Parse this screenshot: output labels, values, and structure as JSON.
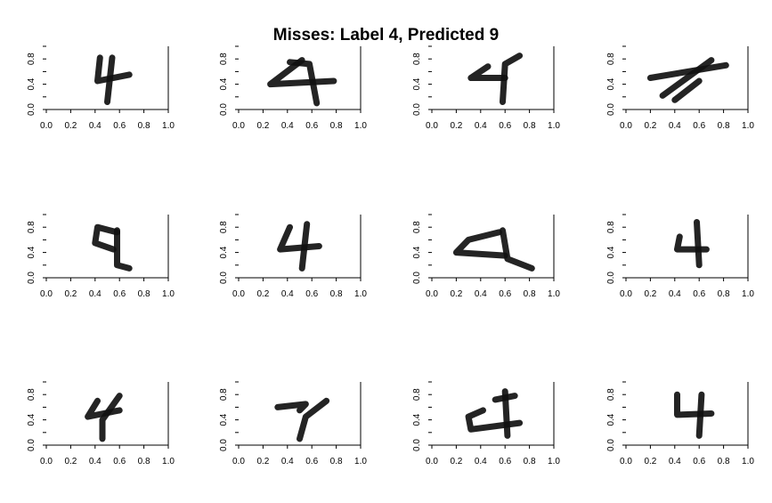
{
  "title": "Misses: Label 4, Predicted 9",
  "chart_data": [
    {
      "type": "scatter",
      "xlim": [
        0,
        1
      ],
      "ylim": [
        0,
        1
      ],
      "xticks": [
        "0.0",
        "0.2",
        "0.4",
        "0.6",
        "0.8",
        "1.0"
      ],
      "yticks": [
        "0.0",
        "0.4",
        "0.8"
      ],
      "strokes": [
        [
          [
            0.44,
            0.82
          ],
          [
            0.42,
            0.45
          ],
          [
            0.68,
            0.55
          ]
        ],
        [
          [
            0.54,
            0.82
          ],
          [
            0.5,
            0.12
          ]
        ]
      ]
    },
    {
      "type": "scatter",
      "xlim": [
        0,
        1
      ],
      "ylim": [
        0,
        1
      ],
      "xticks": [
        "0.0",
        "0.2",
        "0.4",
        "0.6",
        "0.8",
        "1.0"
      ],
      "yticks": [
        "0.0",
        "0.4",
        "0.8"
      ],
      "strokes": [
        [
          [
            0.52,
            0.78
          ],
          [
            0.26,
            0.4
          ],
          [
            0.78,
            0.45
          ]
        ],
        [
          [
            0.42,
            0.75
          ],
          [
            0.58,
            0.72
          ],
          [
            0.64,
            0.1
          ]
        ]
      ]
    },
    {
      "type": "scatter",
      "xlim": [
        0,
        1
      ],
      "ylim": [
        0,
        1
      ],
      "xticks": [
        "0.0",
        "0.2",
        "0.4",
        "0.6",
        "0.8",
        "1.0"
      ],
      "yticks": [
        "0.0",
        "0.4",
        "0.8"
      ],
      "strokes": [
        [
          [
            0.46,
            0.68
          ],
          [
            0.32,
            0.5
          ],
          [
            0.6,
            0.5
          ]
        ],
        [
          [
            0.72,
            0.85
          ],
          [
            0.6,
            0.72
          ],
          [
            0.58,
            0.12
          ]
        ]
      ]
    },
    {
      "type": "scatter",
      "xlim": [
        0,
        1
      ],
      "ylim": [
        0,
        1
      ],
      "xticks": [
        "0.0",
        "0.2",
        "0.4",
        "0.6",
        "0.8",
        "1.0"
      ],
      "yticks": [
        "0.0",
        "0.4",
        "0.8"
      ],
      "strokes": [
        [
          [
            0.2,
            0.5
          ],
          [
            0.82,
            0.7
          ]
        ],
        [
          [
            0.3,
            0.22
          ],
          [
            0.7,
            0.78
          ]
        ],
        [
          [
            0.4,
            0.15
          ],
          [
            0.6,
            0.45
          ]
        ]
      ]
    },
    {
      "type": "scatter",
      "xlim": [
        0,
        1
      ],
      "ylim": [
        0,
        1
      ],
      "xticks": [
        "0.0",
        "0.2",
        "0.4",
        "0.6",
        "0.8",
        "1.0"
      ],
      "yticks": [
        "0.0",
        "0.4",
        "0.8"
      ],
      "strokes": [
        [
          [
            0.58,
            0.72
          ],
          [
            0.42,
            0.8
          ],
          [
            0.4,
            0.55
          ],
          [
            0.55,
            0.45
          ]
        ],
        [
          [
            0.58,
            0.75
          ],
          [
            0.58,
            0.2
          ],
          [
            0.68,
            0.15
          ]
        ]
      ]
    },
    {
      "type": "scatter",
      "xlim": [
        0,
        1
      ],
      "ylim": [
        0,
        1
      ],
      "xticks": [
        "0.0",
        "0.2",
        "0.4",
        "0.6",
        "0.8",
        "1.0"
      ],
      "yticks": [
        "0.0",
        "0.4",
        "0.8"
      ],
      "strokes": [
        [
          [
            0.42,
            0.8
          ],
          [
            0.34,
            0.45
          ],
          [
            0.66,
            0.5
          ]
        ],
        [
          [
            0.56,
            0.85
          ],
          [
            0.52,
            0.15
          ]
        ]
      ]
    },
    {
      "type": "scatter",
      "xlim": [
        0,
        1
      ],
      "ylim": [
        0,
        1
      ],
      "xticks": [
        "0.0",
        "0.2",
        "0.4",
        "0.6",
        "0.8",
        "1.0"
      ],
      "yticks": [
        "0.0",
        "0.4",
        "0.8"
      ],
      "strokes": [
        [
          [
            0.55,
            0.72
          ],
          [
            0.3,
            0.6
          ],
          [
            0.2,
            0.4
          ],
          [
            0.6,
            0.35
          ]
        ],
        [
          [
            0.58,
            0.75
          ],
          [
            0.62,
            0.3
          ],
          [
            0.82,
            0.15
          ]
        ]
      ]
    },
    {
      "type": "scatter",
      "xlim": [
        0,
        1
      ],
      "ylim": [
        0,
        1
      ],
      "xticks": [
        "0.0",
        "0.2",
        "0.4",
        "0.6",
        "0.8",
        "1.0"
      ],
      "yticks": [
        "0.0",
        "0.4",
        "0.8"
      ],
      "strokes": [
        [
          [
            0.44,
            0.65
          ],
          [
            0.42,
            0.45
          ],
          [
            0.66,
            0.45
          ]
        ],
        [
          [
            0.58,
            0.88
          ],
          [
            0.6,
            0.2
          ]
        ]
      ]
    },
    {
      "type": "scatter",
      "xlim": [
        0,
        1
      ],
      "ylim": [
        0,
        1
      ],
      "xticks": [
        "0.0",
        "0.2",
        "0.4",
        "0.6",
        "0.8",
        "1.0"
      ],
      "yticks": [
        "0.0",
        "0.4",
        "0.8"
      ],
      "strokes": [
        [
          [
            0.42,
            0.7
          ],
          [
            0.34,
            0.45
          ],
          [
            0.6,
            0.55
          ]
        ],
        [
          [
            0.6,
            0.78
          ],
          [
            0.46,
            0.4
          ],
          [
            0.46,
            0.1
          ]
        ]
      ]
    },
    {
      "type": "scatter",
      "xlim": [
        0,
        1
      ],
      "ylim": [
        0,
        1
      ],
      "xticks": [
        "0.0",
        "0.2",
        "0.4",
        "0.6",
        "0.8",
        "1.0"
      ],
      "yticks": [
        "0.0",
        "0.4",
        "0.8"
      ],
      "strokes": [
        [
          [
            0.32,
            0.6
          ],
          [
            0.55,
            0.65
          ],
          [
            0.5,
            0.55
          ]
        ],
        [
          [
            0.72,
            0.7
          ],
          [
            0.55,
            0.45
          ],
          [
            0.5,
            0.1
          ]
        ]
      ]
    },
    {
      "type": "scatter",
      "xlim": [
        0,
        1
      ],
      "ylim": [
        0,
        1
      ],
      "xticks": [
        "0.0",
        "0.2",
        "0.4",
        "0.6",
        "0.8",
        "1.0"
      ],
      "yticks": [
        "0.0",
        "0.4",
        "0.8"
      ],
      "strokes": [
        [
          [
            0.42,
            0.55
          ],
          [
            0.3,
            0.45
          ],
          [
            0.32,
            0.25
          ],
          [
            0.72,
            0.35
          ]
        ],
        [
          [
            0.6,
            0.85
          ],
          [
            0.62,
            0.15
          ]
        ],
        [
          [
            0.52,
            0.72
          ],
          [
            0.68,
            0.78
          ]
        ]
      ]
    },
    {
      "type": "scatter",
      "xlim": [
        0,
        1
      ],
      "ylim": [
        0,
        1
      ],
      "xticks": [
        "0.0",
        "0.2",
        "0.4",
        "0.6",
        "0.8",
        "1.0"
      ],
      "yticks": [
        "0.0",
        "0.4",
        "0.8"
      ],
      "strokes": [
        [
          [
            0.42,
            0.8
          ],
          [
            0.42,
            0.48
          ],
          [
            0.7,
            0.5
          ]
        ],
        [
          [
            0.62,
            0.8
          ],
          [
            0.6,
            0.15
          ]
        ]
      ]
    }
  ]
}
